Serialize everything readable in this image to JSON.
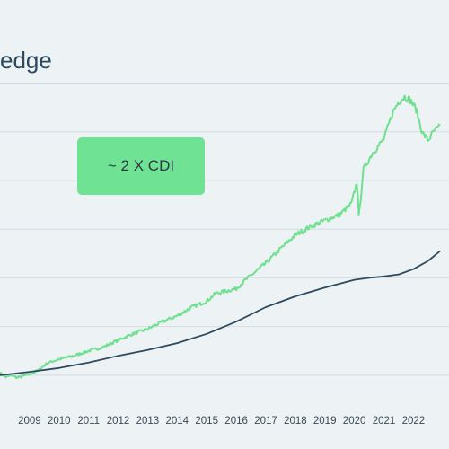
{
  "chart_data": {
    "type": "line",
    "title": "edge",
    "xlabel": "",
    "ylabel": "",
    "x_ticks": [
      "2009",
      "2010",
      "2011",
      "2012",
      "2013",
      "2014",
      "2015",
      "2016",
      "2017",
      "2018",
      "2019",
      "2020",
      "2021",
      "2022"
    ],
    "grid": true,
    "legend": "none",
    "annotations": [
      {
        "text": "~ 2 X CDI"
      }
    ],
    "series": [
      {
        "color": "#6fe08f",
        "x": [
          2008.0,
          2008.2,
          2008.4,
          2008.6,
          2009.0,
          2009.3,
          2009.6,
          2010.0,
          2010.5,
          2011.0,
          2011.5,
          2012.0,
          2012.5,
          2013.0,
          2013.5,
          2014.0,
          2014.5,
          2015.0,
          2015.3,
          2015.6,
          2016.0,
          2016.3,
          2016.6,
          2017.0,
          2017.5,
          2018.0,
          2018.5,
          2019.0,
          2019.5,
          2019.9,
          2020.1,
          2020.15,
          2020.3,
          2020.6,
          2021.0,
          2021.3,
          2021.5,
          2021.7,
          2021.9,
          2022.1,
          2022.3,
          2022.5,
          2022.7,
          2022.9
        ],
        "values": [
          1.05,
          0.96,
          1.0,
          0.95,
          1.02,
          1.1,
          1.25,
          1.33,
          1.4,
          1.5,
          1.58,
          1.72,
          1.85,
          1.95,
          2.1,
          2.22,
          2.4,
          2.52,
          2.68,
          2.72,
          2.78,
          2.95,
          3.1,
          3.3,
          3.6,
          3.88,
          4.05,
          4.18,
          4.3,
          4.52,
          5.0,
          4.2,
          5.22,
          5.55,
          5.85,
          6.4,
          6.62,
          6.72,
          6.65,
          6.45,
          5.98,
          5.82,
          6.02,
          6.1
        ]
      },
      {
        "color": "#2e4a5e",
        "x": [
          2008.0,
          2009.0,
          2010.0,
          2011.0,
          2012.0,
          2013.0,
          2014.0,
          2015.0,
          2016.0,
          2017.0,
          2018.0,
          2019.0,
          2020.0,
          2020.5,
          2021.0,
          2021.5,
          2022.0,
          2022.5,
          2022.9
        ],
        "values": [
          1.0,
          1.07,
          1.15,
          1.26,
          1.4,
          1.52,
          1.66,
          1.85,
          2.1,
          2.4,
          2.62,
          2.8,
          2.96,
          3.0,
          3.03,
          3.07,
          3.18,
          3.35,
          3.55
        ]
      }
    ]
  }
}
